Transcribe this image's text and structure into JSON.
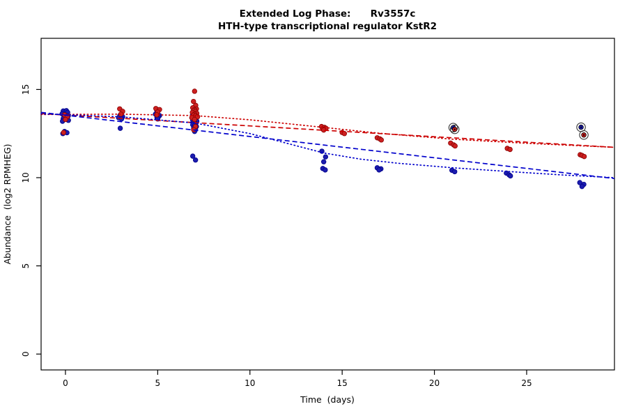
{
  "title": {
    "line1": "Extended Log Phase:      Rv3557c",
    "line2": "HTH-type transcriptional regulator KstR2"
  },
  "chart_data": {
    "type": "scatter",
    "title": "Extended Log Phase: Rv3557c — HTH-type transcriptional regulator KstR2",
    "xlabel": "Time  (days)",
    "ylabel": "Abundance  (log2 RPMHEG)",
    "xlim": [
      -1.32,
      29.76
    ],
    "ylim": [
      -0.9,
      17.9
    ],
    "x_ticks": [
      0,
      5,
      10,
      15,
      20,
      25
    ],
    "y_ticks": [
      0,
      5,
      10,
      15
    ],
    "grid": false,
    "legend": "none",
    "colors": {
      "blue_fill": "#1c1cae",
      "blue_stroke": "#00008b",
      "red_fill": "#cc2020",
      "red_stroke": "#8b0000",
      "blue_line": "#0000cc",
      "red_line": "#cc0000"
    },
    "series": [
      {
        "name": "blue-points",
        "color": "#1c1cae",
        "stroke": "#00008b",
        "points": [
          [
            -0.12,
            13.78
          ],
          [
            0.05,
            13.8
          ],
          [
            0.12,
            13.7
          ],
          [
            -0.18,
            13.62
          ],
          [
            0.0,
            13.55
          ],
          [
            0.15,
            13.5
          ],
          [
            -0.06,
            13.45
          ],
          [
            0.1,
            13.4
          ],
          [
            -0.12,
            13.35
          ],
          [
            0.04,
            13.3
          ],
          [
            0.16,
            13.25
          ],
          [
            -0.16,
            13.2
          ],
          [
            -0.05,
            12.62
          ],
          [
            0.08,
            12.55
          ],
          [
            -0.14,
            12.5
          ],
          [
            2.95,
            13.52
          ],
          [
            3.1,
            13.45
          ],
          [
            2.88,
            13.4
          ],
          [
            3.04,
            13.33
          ],
          [
            2.97,
            12.8
          ],
          [
            4.95,
            13.82
          ],
          [
            4.88,
            13.6
          ],
          [
            5.1,
            13.52
          ],
          [
            5.04,
            13.45
          ],
          [
            4.96,
            13.4
          ],
          [
            5.0,
            13.33
          ],
          [
            6.88,
            13.52
          ],
          [
            7.1,
            13.46
          ],
          [
            7.0,
            13.4
          ],
          [
            6.94,
            13.35
          ],
          [
            7.06,
            13.3
          ],
          [
            6.9,
            13.25
          ],
          [
            7.12,
            13.2
          ],
          [
            7.0,
            13.15
          ],
          [
            6.95,
            13.1
          ],
          [
            7.05,
            13.05
          ],
          [
            6.9,
            13.0
          ],
          [
            7.0,
            12.95
          ],
          [
            7.1,
            12.9
          ],
          [
            6.95,
            12.82
          ],
          [
            7.05,
            12.72
          ],
          [
            7.0,
            12.62
          ],
          [
            6.9,
            11.22
          ],
          [
            7.05,
            11.0
          ],
          [
            13.9,
            11.5
          ],
          [
            14.1,
            11.18
          ],
          [
            14.0,
            10.9
          ],
          [
            13.95,
            10.52
          ],
          [
            14.08,
            10.44
          ],
          [
            16.9,
            10.56
          ],
          [
            17.1,
            10.5
          ],
          [
            17.0,
            10.44
          ],
          [
            20.95,
            10.42
          ],
          [
            21.1,
            10.34
          ],
          [
            23.9,
            10.26
          ],
          [
            24.05,
            10.16
          ],
          [
            24.12,
            10.1
          ],
          [
            27.88,
            9.72
          ],
          [
            28.1,
            9.62
          ],
          [
            28.0,
            9.5
          ]
        ]
      },
      {
        "name": "red-points",
        "color": "#cc2020",
        "stroke": "#8b0000",
        "points": [
          [
            -0.05,
            13.56
          ],
          [
            0.1,
            13.46
          ],
          [
            0.0,
            13.3
          ],
          [
            -0.1,
            12.56
          ],
          [
            2.94,
            13.9
          ],
          [
            3.1,
            13.76
          ],
          [
            3.0,
            13.6
          ],
          [
            4.9,
            13.92
          ],
          [
            5.1,
            13.86
          ],
          [
            5.0,
            13.72
          ],
          [
            4.95,
            13.56
          ],
          [
            7.0,
            14.9
          ],
          [
            6.94,
            14.32
          ],
          [
            7.06,
            14.1
          ],
          [
            6.9,
            13.96
          ],
          [
            7.1,
            13.9
          ],
          [
            7.0,
            13.85
          ],
          [
            6.95,
            13.8
          ],
          [
            7.05,
            13.75
          ],
          [
            6.88,
            13.7
          ],
          [
            7.12,
            13.65
          ],
          [
            7.0,
            13.6
          ],
          [
            6.95,
            13.55
          ],
          [
            7.05,
            13.5
          ],
          [
            7.16,
            13.45
          ],
          [
            6.85,
            13.4
          ],
          [
            7.0,
            13.3
          ],
          [
            7.05,
            12.9
          ],
          [
            6.95,
            12.72
          ],
          [
            13.88,
            12.9
          ],
          [
            14.04,
            12.85
          ],
          [
            14.12,
            12.8
          ],
          [
            13.95,
            12.75
          ],
          [
            14.0,
            12.7
          ],
          [
            15.0,
            12.56
          ],
          [
            15.12,
            12.5
          ],
          [
            16.9,
            12.26
          ],
          [
            17.04,
            12.2
          ],
          [
            17.12,
            12.14
          ],
          [
            20.88,
            11.96
          ],
          [
            21.04,
            11.86
          ],
          [
            21.12,
            11.8
          ],
          [
            23.95,
            11.66
          ],
          [
            24.1,
            11.6
          ],
          [
            27.9,
            11.3
          ],
          [
            28.0,
            11.26
          ],
          [
            28.12,
            11.2
          ]
        ]
      }
    ],
    "circled_points": [
      {
        "x": 21.02,
        "y": 12.84,
        "series": "blue"
      },
      {
        "x": 21.1,
        "y": 12.74,
        "series": "red"
      },
      {
        "x": 27.95,
        "y": 12.86,
        "series": "blue"
      },
      {
        "x": 28.1,
        "y": 12.42,
        "series": "red"
      }
    ],
    "trend_lines": [
      {
        "name": "red-dashed",
        "color": "#cc0000",
        "style": "dashed",
        "points": [
          [
            -1.32,
            13.63
          ],
          [
            29.76,
            11.72
          ]
        ]
      },
      {
        "name": "red-dotted",
        "color": "#cc0000",
        "style": "dotted",
        "points": [
          [
            -1.32,
            13.58
          ],
          [
            3,
            13.6
          ],
          [
            7,
            13.52
          ],
          [
            10,
            13.28
          ],
          [
            14,
            12.85
          ],
          [
            17,
            12.52
          ],
          [
            21,
            12.18
          ],
          [
            25,
            11.95
          ],
          [
            29.76,
            11.72
          ]
        ]
      },
      {
        "name": "blue-dashed",
        "color": "#0000cc",
        "style": "dashed",
        "points": [
          [
            -1.32,
            13.7
          ],
          [
            29.76,
            9.95
          ]
        ]
      },
      {
        "name": "blue-dotted",
        "color": "#0000cc",
        "style": "dotted",
        "points": [
          [
            -1.32,
            13.62
          ],
          [
            3,
            13.45
          ],
          [
            7,
            13.1
          ],
          [
            10,
            12.5
          ],
          [
            12,
            11.95
          ],
          [
            14,
            11.4
          ],
          [
            16,
            11.05
          ],
          [
            18,
            10.82
          ],
          [
            21,
            10.56
          ],
          [
            24,
            10.35
          ],
          [
            27,
            10.15
          ],
          [
            29.76,
            10.0
          ]
        ]
      }
    ]
  }
}
